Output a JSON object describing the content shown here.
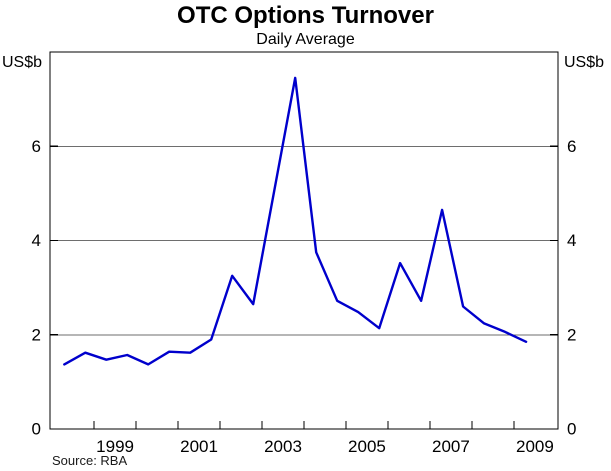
{
  "header": {
    "title": "OTC Options Turnover",
    "subtitle": "Daily Average"
  },
  "axes": {
    "unit_left": "US$b",
    "unit_right": "US$b"
  },
  "footer": {
    "source": "Source: RBA"
  },
  "chart_data": {
    "type": "line",
    "title": "OTC Options Turnover",
    "subtitle": "Daily Average",
    "ylabel": "US$b",
    "source": "Source: RBA",
    "frequency": "semiannual",
    "x": [
      1998.29,
      1998.79,
      1999.29,
      1999.79,
      2000.29,
      2000.79,
      2001.29,
      2001.79,
      2002.29,
      2002.79,
      2003.29,
      2003.79,
      2004.29,
      2004.79,
      2005.29,
      2005.79,
      2006.29,
      2006.79,
      2007.29,
      2007.79,
      2008.29,
      2008.79,
      2009.29
    ],
    "series": [
      {
        "name": "OTC options turnover, daily average (US$b)",
        "color": "#0000CC",
        "values": [
          1.37,
          1.62,
          1.47,
          1.57,
          1.37,
          1.64,
          1.62,
          1.9,
          3.25,
          2.65,
          5.05,
          7.45,
          3.75,
          2.72,
          2.48,
          2.14,
          3.52,
          2.72,
          4.65,
          2.6,
          2.24,
          2.06,
          1.85
        ]
      }
    ],
    "xlim": [
      1997.95,
      2010.05
    ],
    "ylim": [
      0,
      8
    ],
    "yticks": [
      0,
      2,
      4,
      6
    ],
    "ygridlines": [
      2,
      4,
      6
    ],
    "xticks": [
      1999,
      2000,
      2001,
      2002,
      2003,
      2004,
      2005,
      2006,
      2007,
      2008,
      2009
    ],
    "xtick_labels": [
      {
        "text": "1999",
        "pos": 1999.5
      },
      {
        "text": "2001",
        "pos": 2001.5
      },
      {
        "text": "2003",
        "pos": 2003.5
      },
      {
        "text": "2005",
        "pos": 2005.5
      },
      {
        "text": "2007",
        "pos": 2007.5
      },
      {
        "text": "2009",
        "pos": 2009.5
      }
    ],
    "grid_on": true,
    "legend_position": "none",
    "grid_color": "#6e6e6e",
    "axis_color": "#000000"
  }
}
